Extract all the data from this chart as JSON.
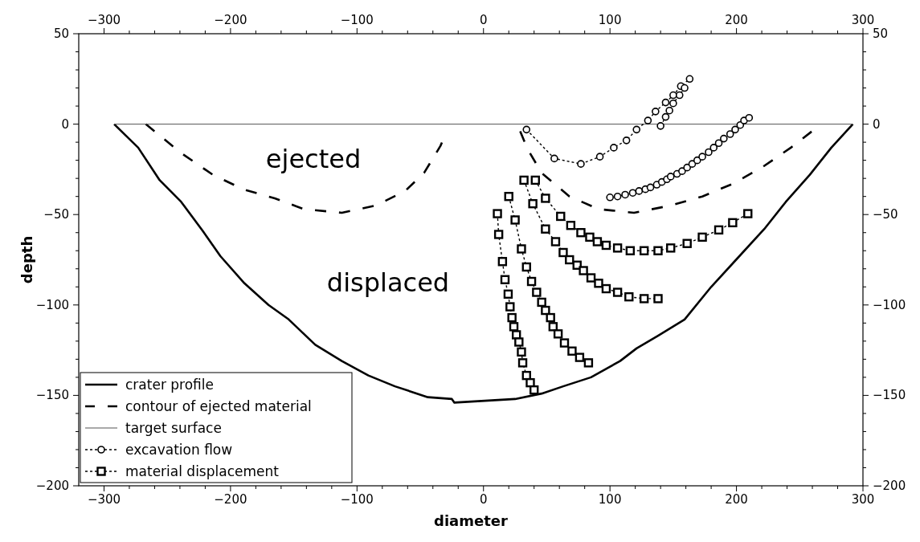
{
  "chart_data": {
    "type": "line",
    "xlabel": "diameter",
    "ylabel": "depth",
    "xlim": [
      -320,
      300
    ],
    "ylim": [
      -200,
      50
    ],
    "x2lim": [
      -320,
      300
    ],
    "y2lim": [
      -200,
      50
    ],
    "xticks": [
      {
        "value": -300,
        "label": "−300"
      },
      {
        "value": -280,
        "label": null
      },
      {
        "value": -260,
        "label": null
      },
      {
        "value": -240,
        "label": null
      },
      {
        "value": -220,
        "label": null
      },
      {
        "value": -200,
        "label": "−200"
      },
      {
        "value": -180,
        "label": null
      },
      {
        "value": -160,
        "label": null
      },
      {
        "value": -140,
        "label": null
      },
      {
        "value": -120,
        "label": null
      },
      {
        "value": -100,
        "label": "−100"
      },
      {
        "value": -80,
        "label": null
      },
      {
        "value": -60,
        "label": null
      },
      {
        "value": -40,
        "label": null
      },
      {
        "value": -20,
        "label": null
      },
      0,
      {
        "value": 20,
        "label": null
      },
      {
        "value": 40,
        "label": null
      },
      {
        "value": 60,
        "label": null
      },
      {
        "value": 80,
        "label": null
      },
      100,
      {
        "value": 120,
        "label": null
      },
      {
        "value": 140,
        "label": null
      },
      {
        "value": 160,
        "label": null
      },
      {
        "value": 180,
        "label": null
      },
      200,
      {
        "value": 220,
        "label": null
      },
      {
        "value": 240,
        "label": null
      },
      {
        "value": 260,
        "label": null
      },
      {
        "value": 280,
        "label": null
      },
      300
    ],
    "x2ticks": [
      {
        "value": -300,
        "label": "−300"
      },
      {
        "value": -280,
        "label": null
      },
      {
        "value": -260,
        "label": null
      },
      {
        "value": -240,
        "label": null
      },
      {
        "value": -220,
        "label": null
      },
      {
        "value": -200,
        "label": "−200"
      },
      {
        "value": -180,
        "label": null
      },
      {
        "value": -160,
        "label": null
      },
      {
        "value": -140,
        "label": null
      },
      {
        "value": -120,
        "label": null
      },
      {
        "value": -100,
        "label": "−100"
      },
      {
        "value": -80,
        "label": null
      },
      {
        "value": -60,
        "label": null
      },
      {
        "value": -40,
        "label": null
      },
      {
        "value": -20,
        "label": null
      },
      0,
      {
        "value": 20,
        "label": null
      },
      {
        "value": 40,
        "label": null
      },
      {
        "value": 60,
        "label": null
      },
      {
        "value": 80,
        "label": null
      },
      100,
      {
        "value": 120,
        "label": null
      },
      {
        "value": 140,
        "label": null
      },
      {
        "value": 160,
        "label": null
      },
      {
        "value": 180,
        "label": null
      },
      200,
      {
        "value": 220,
        "label": null
      },
      {
        "value": 240,
        "label": null
      },
      {
        "value": 260,
        "label": null
      },
      {
        "value": 280,
        "label": null
      },
      300
    ],
    "yticks": [
      {
        "value": -200,
        "label": "−200"
      },
      {
        "value": -190,
        "label": null
      },
      {
        "value": -180,
        "label": null
      },
      {
        "value": -170,
        "label": null
      },
      {
        "value": -160,
        "label": null
      },
      {
        "value": -150,
        "label": "−150"
      },
      {
        "value": -140,
        "label": null
      },
      {
        "value": -130,
        "label": null
      },
      {
        "value": -120,
        "label": null
      },
      {
        "value": -110,
        "label": null
      },
      {
        "value": -100,
        "label": "−100"
      },
      {
        "value": -90,
        "label": null
      },
      {
        "value": -80,
        "label": null
      },
      {
        "value": -70,
        "label": null
      },
      {
        "value": -60,
        "label": null
      },
      {
        "value": -50,
        "label": "−50"
      },
      {
        "value": -40,
        "label": null
      },
      {
        "value": -30,
        "label": null
      },
      {
        "value": -20,
        "label": null
      },
      {
        "value": -10,
        "label": null
      },
      0,
      {
        "value": 10,
        "label": null
      },
      {
        "value": 20,
        "label": null
      },
      {
        "value": 30,
        "label": null
      },
      {
        "value": 40,
        "label": null
      },
      50
    ],
    "y2ticks": [
      {
        "value": -200,
        "label": "−200"
      },
      {
        "value": -190,
        "label": null
      },
      {
        "value": -180,
        "label": null
      },
      {
        "value": -170,
        "label": null
      },
      {
        "value": -160,
        "label": null
      },
      {
        "value": -150,
        "label": "−150"
      },
      {
        "value": -140,
        "label": null
      },
      {
        "value": -130,
        "label": null
      },
      {
        "value": -120,
        "label": null
      },
      {
        "value": -110,
        "label": null
      },
      {
        "value": -100,
        "label": "−100"
      },
      {
        "value": -90,
        "label": null
      },
      {
        "value": -80,
        "label": null
      },
      {
        "value": -70,
        "label": null
      },
      {
        "value": -60,
        "label": null
      },
      {
        "value": -50,
        "label": "−50"
      },
      {
        "value": -40,
        "label": null
      },
      {
        "value": -30,
        "label": null
      },
      {
        "value": -20,
        "label": null
      },
      {
        "value": -10,
        "label": null
      },
      0,
      {
        "value": 10,
        "label": null
      },
      {
        "value": 20,
        "label": null
      },
      {
        "value": 30,
        "label": null
      },
      {
        "value": 40,
        "label": null
      },
      50
    ],
    "legend": "bottom left",
    "annotations": [
      "ejected",
      "displaced"
    ],
    "series": [
      {
        "name": "crater profile",
        "color": "#000000",
        "line_style": "solid",
        "marker": "none",
        "x": [
          -292,
          -273,
          -256,
          -239,
          -222,
          -208,
          -189,
          -170,
          -154,
          -133,
          -112,
          -91,
          -70,
          -44,
          -25,
          -23,
          25,
          46,
          63,
          85,
          108,
          121,
          138,
          159,
          180,
          201,
          222,
          239,
          258,
          275,
          292
        ],
        "values": [
          0,
          -13,
          -31,
          -43,
          -59,
          -73,
          -88,
          -100,
          -108,
          -122,
          -131,
          -139,
          -145,
          -151,
          -152,
          -154,
          -152,
          -149,
          -145,
          -140,
          -131,
          -124,
          -117,
          -108,
          -90,
          -74,
          -58,
          -43,
          -28,
          -13,
          0
        ]
      },
      {
        "name": "contour of ejected material",
        "color": "#000000",
        "line_style": "dashed",
        "marker": "none",
        "x": [
          -267,
          -239,
          -214,
          -190,
          -165,
          -142,
          -112,
          -85,
          -62,
          -47,
          -34,
          -29,
          null,
          29,
          35,
          46,
          68,
          91,
          119,
          148,
          173,
          197,
          220,
          243,
          267
        ],
        "values": [
          0,
          -16,
          -28,
          -36,
          -41,
          -47,
          -49,
          -45,
          -37,
          -27,
          -12,
          -4,
          null,
          -4,
          -14,
          -27,
          -40,
          -47,
          -49,
          -45,
          -40,
          -33,
          -24,
          -13,
          0
        ]
      },
      {
        "name": "target surface",
        "color": "#555555",
        "line_style": "solid",
        "marker": "none",
        "x": [
          -292,
          292
        ],
        "values": [
          0,
          0
        ]
      },
      {
        "name": "excavation flow",
        "color": "#000000",
        "line_style": "dotted",
        "marker": "circle",
        "x": [
          34,
          56,
          77,
          92,
          103,
          113,
          121,
          130,
          136,
          144,
          150,
          156,
          163,
          null,
          140,
          144,
          147,
          150,
          155,
          159,
          null,
          100,
          106,
          112,
          118,
          123,
          128,
          132,
          137,
          141,
          145,
          148,
          153,
          157,
          161,
          165,
          169,
          173,
          178,
          182,
          186,
          190,
          195,
          199,
          203,
          206,
          210
        ],
        "values": [
          -3,
          -19,
          -22,
          -18,
          -13,
          -9,
          -3,
          2,
          7,
          12,
          16,
          21,
          25,
          null,
          -1,
          4,
          7.5,
          11.5,
          16,
          20,
          null,
          -40.5,
          -40,
          -39,
          -38,
          -37,
          -36,
          -35,
          -33.5,
          -32,
          -30.5,
          -29,
          -27.5,
          -26,
          -24,
          -22,
          -20,
          -18,
          -15.5,
          -13,
          -10.5,
          -8,
          -5.5,
          -3,
          -0.5,
          2,
          3.5
        ]
      },
      {
        "name": "material displacement",
        "color": "#000000",
        "line_style": "dotted",
        "marker": "square",
        "x": [
          11,
          12,
          15,
          17,
          19.5,
          21,
          22.5,
          24,
          26,
          28,
          30,
          31,
          34,
          37,
          40,
          null,
          20,
          25,
          30,
          34,
          38,
          42,
          46,
          49,
          53,
          55,
          59,
          64,
          70,
          76,
          83,
          null,
          32,
          39,
          49,
          57,
          63,
          68,
          74,
          79,
          85,
          91,
          97,
          106,
          115,
          127,
          138,
          null,
          41,
          49,
          61,
          69,
          77,
          84,
          90,
          97,
          106,
          116,
          127,
          138,
          148,
          161,
          173,
          186,
          197,
          209
        ],
        "values": [
          -49.5,
          -61,
          -76,
          -86,
          -94,
          -101,
          -107,
          -112,
          -116.5,
          -120.5,
          -126,
          -132,
          -139,
          -143,
          -147,
          null,
          -40,
          -53,
          -69,
          -79,
          -87,
          -93,
          -98.5,
          -103,
          -107,
          -112,
          -116,
          -121,
          -125.5,
          -129,
          -132,
          null,
          -31,
          -44,
          -58,
          -65,
          -71,
          -75,
          -78,
          -81,
          -85,
          -88,
          -91,
          -93,
          -95.5,
          -96.5,
          -96.5,
          null,
          -31,
          -41,
          -51,
          -56,
          -60,
          -62.5,
          -65,
          -67,
          -68.5,
          -70,
          -70,
          -70,
          -68.5,
          -66,
          -62.5,
          -58.5,
          -54.5,
          -49.5
        ]
      }
    ]
  }
}
